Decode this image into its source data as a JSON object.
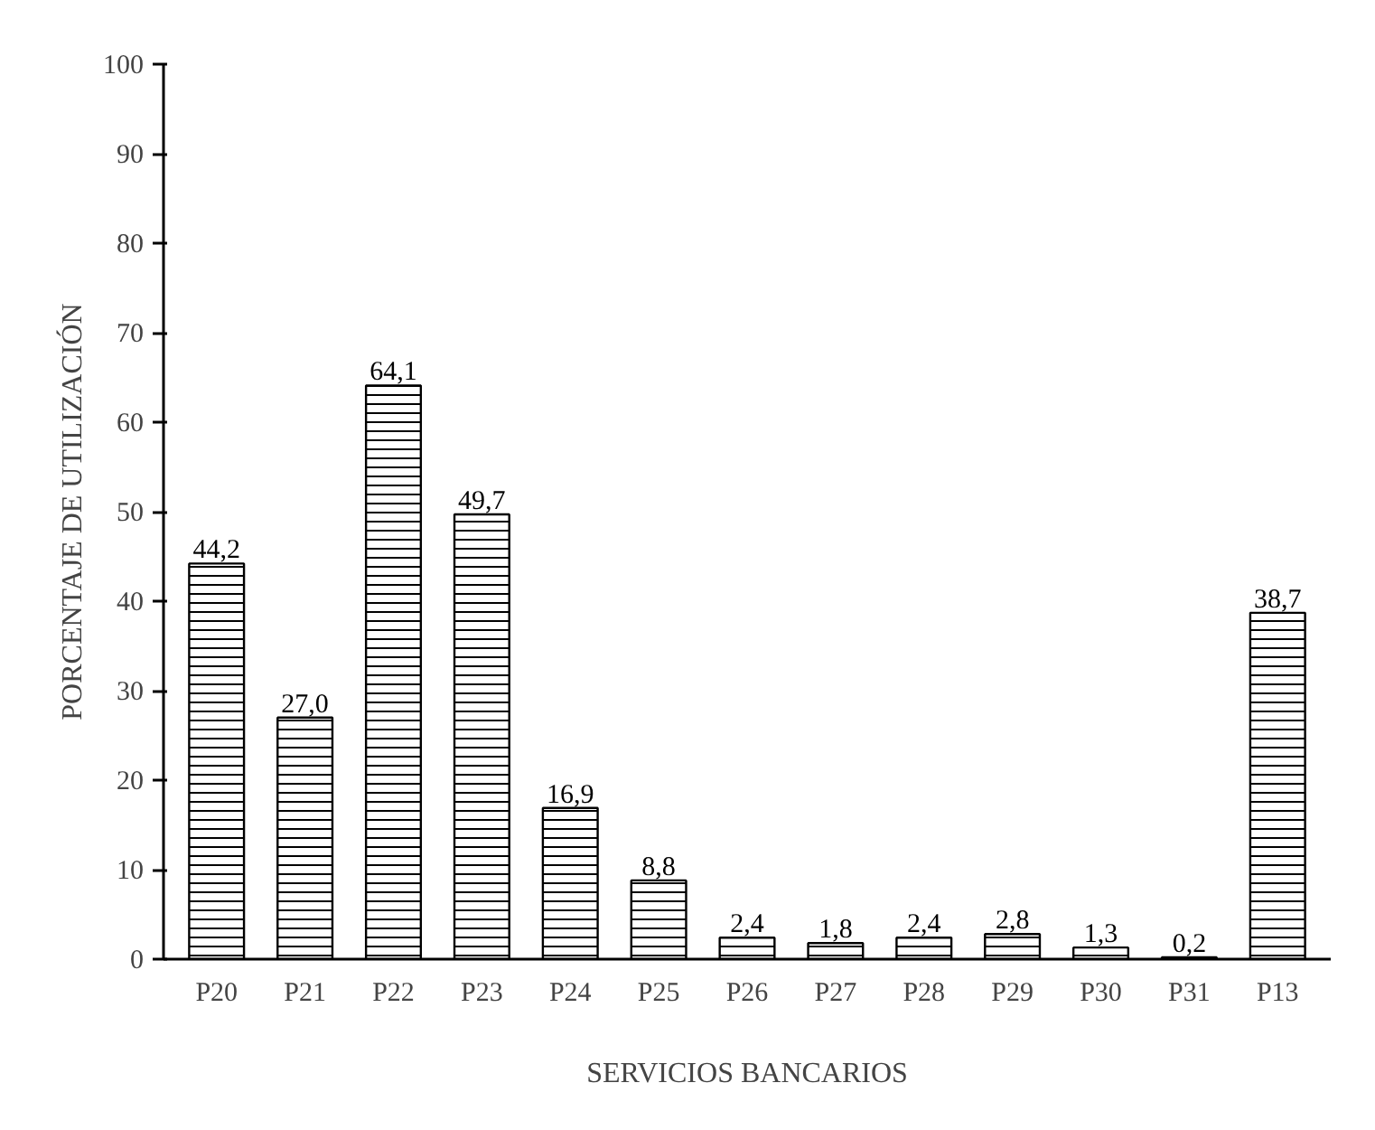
{
  "chart_data": {
    "type": "bar",
    "xlabel": "SERVICIOS BANCARIOS",
    "ylabel": "PORCENTAJE DE UTILIZACIÓN",
    "categories": [
      "P20",
      "P21",
      "P22",
      "P23",
      "P24",
      "P25",
      "P26",
      "P27",
      "P28",
      "P29",
      "P30",
      "P31",
      "P13"
    ],
    "values": [
      44.2,
      27.0,
      64.1,
      49.7,
      16.9,
      8.8,
      2.4,
      1.8,
      2.4,
      2.8,
      1.3,
      0.2,
      38.7
    ],
    "value_labels": [
      "44,2",
      "27,0",
      "64,1",
      "49,7",
      "16,9",
      "8,8",
      "2,4",
      "1,8",
      "2,4",
      "2,8",
      "1,3",
      "0,2",
      "38,7"
    ],
    "color": "#ffffff",
    "ylim": [
      0,
      100
    ],
    "yticks": [
      0,
      10,
      20,
      30,
      40,
      50,
      60,
      70,
      80,
      90,
      100
    ],
    "grid": false
  }
}
